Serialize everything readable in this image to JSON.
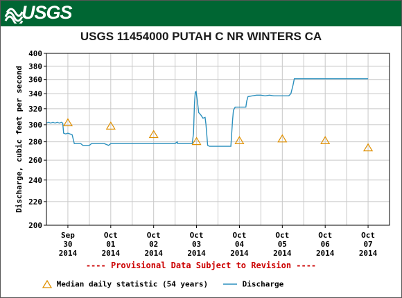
{
  "header": {
    "logo_text": "USGS",
    "brand_color": "#006633"
  },
  "notice": "---- Provisional Data Subject to Revision ----",
  "chart_data": {
    "type": "line",
    "title": "USGS 11454000 PUTAH C NR WINTERS CA",
    "ylabel": "Discharge, cubic feet per second",
    "xlabel": "",
    "ylim": [
      200,
      400
    ],
    "yscale": "log",
    "yticks": [
      200,
      220,
      240,
      260,
      280,
      300,
      320,
      340,
      360,
      380,
      400
    ],
    "xticks": [
      {
        "label": [
          "Sep",
          "30",
          "2014"
        ],
        "x": 0
      },
      {
        "label": [
          "Oct",
          "01",
          "2014"
        ],
        "x": 1
      },
      {
        "label": [
          "Oct",
          "02",
          "2014"
        ],
        "x": 2
      },
      {
        "label": [
          "Oct",
          "03",
          "2014"
        ],
        "x": 3
      },
      {
        "label": [
          "Oct",
          "04",
          "2014"
        ],
        "x": 4
      },
      {
        "label": [
          "Oct",
          "05",
          "2014"
        ],
        "x": 5
      },
      {
        "label": [
          "Oct",
          "06",
          "2014"
        ],
        "x": 6
      },
      {
        "label": [
          "Oct",
          "07",
          "2014"
        ],
        "x": 7
      }
    ],
    "xlim": [
      -0.5,
      7.5
    ],
    "grid": true,
    "legend_position": "bottom",
    "series": [
      {
        "name": "Discharge",
        "kind": "line",
        "color": "#2a8fbd",
        "points": [
          [
            -0.5,
            302
          ],
          [
            -0.45,
            303
          ],
          [
            -0.4,
            302
          ],
          [
            -0.35,
            303
          ],
          [
            -0.3,
            302
          ],
          [
            -0.25,
            303
          ],
          [
            -0.2,
            302
          ],
          [
            -0.15,
            303
          ],
          [
            -0.12,
            302
          ],
          [
            -0.1,
            290
          ],
          [
            -0.05,
            289
          ],
          [
            0.0,
            290
          ],
          [
            0.05,
            289
          ],
          [
            0.1,
            288
          ],
          [
            0.15,
            278
          ],
          [
            0.3,
            278
          ],
          [
            0.35,
            276
          ],
          [
            0.5,
            276
          ],
          [
            0.55,
            278
          ],
          [
            0.85,
            278
          ],
          [
            0.95,
            276
          ],
          [
            1.0,
            278
          ],
          [
            1.5,
            278
          ],
          [
            2.0,
            278
          ],
          [
            2.5,
            278
          ],
          [
            2.55,
            280
          ],
          [
            2.56,
            278
          ],
          [
            2.9,
            278
          ],
          [
            2.93,
            290
          ],
          [
            2.95,
            325
          ],
          [
            2.97,
            342
          ],
          [
            2.99,
            343
          ],
          [
            3.02,
            330
          ],
          [
            3.05,
            315
          ],
          [
            3.1,
            312
          ],
          [
            3.15,
            308
          ],
          [
            3.2,
            309
          ],
          [
            3.22,
            300
          ],
          [
            3.26,
            276
          ],
          [
            3.3,
            275
          ],
          [
            3.5,
            275
          ],
          [
            3.8,
            275
          ],
          [
            3.84,
            305
          ],
          [
            3.86,
            318
          ],
          [
            3.9,
            322
          ],
          [
            4.15,
            322
          ],
          [
            4.17,
            330
          ],
          [
            4.2,
            336
          ],
          [
            4.3,
            337
          ],
          [
            4.4,
            338
          ],
          [
            4.5,
            338
          ],
          [
            4.6,
            337
          ],
          [
            4.7,
            338
          ],
          [
            4.8,
            337
          ],
          [
            5.0,
            337
          ],
          [
            5.15,
            337
          ],
          [
            5.2,
            340
          ],
          [
            5.25,
            352
          ],
          [
            5.28,
            361
          ],
          [
            5.5,
            361
          ],
          [
            6.0,
            361
          ],
          [
            6.5,
            361
          ],
          [
            7.0,
            361
          ]
        ]
      },
      {
        "name": "Median daily statistic (54 years)",
        "kind": "marker",
        "color": "#e09000",
        "points": [
          [
            0,
            302
          ],
          [
            1,
            298
          ],
          [
            2,
            288
          ],
          [
            3,
            280
          ],
          [
            4,
            281
          ],
          [
            5,
            283
          ],
          [
            6,
            281
          ],
          [
            7,
            273
          ]
        ]
      }
    ]
  },
  "legend": {
    "median_label": "Median daily statistic (54 years)",
    "discharge_label": "Discharge"
  }
}
